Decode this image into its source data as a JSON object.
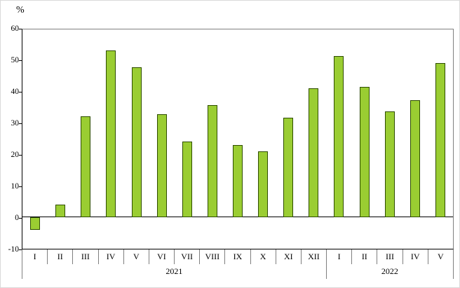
{
  "chart_data": {
    "type": "bar",
    "title": "",
    "ylabel": "%",
    "xlabel": "",
    "categories": [
      "I",
      "II",
      "III",
      "IV",
      "V",
      "VI",
      "VII",
      "VIII",
      "IX",
      "X",
      "XI",
      "XII",
      "I",
      "II",
      "III",
      "IV",
      "V"
    ],
    "values": [
      -4.0,
      4.0,
      32.3,
      53.2,
      48.0,
      33.0,
      24.2,
      35.9,
      23.0,
      21.0,
      31.9,
      41.2,
      51.5,
      41.6,
      33.8,
      37.5,
      49.3
    ],
    "year_groups": [
      {
        "label": "2021",
        "span": 12
      },
      {
        "label": "2022",
        "span": 5
      }
    ],
    "ylim": [
      -10,
      60
    ],
    "yticks": [
      60,
      50,
      40,
      30,
      20,
      10,
      0,
      -10
    ],
    "grid": "off",
    "legend": "none",
    "colors": {
      "bar_fill": "#9ACD32",
      "bar_border": "#2e4d00",
      "axis_line": "#000000",
      "frame_line": "#7f7f7f"
    }
  }
}
